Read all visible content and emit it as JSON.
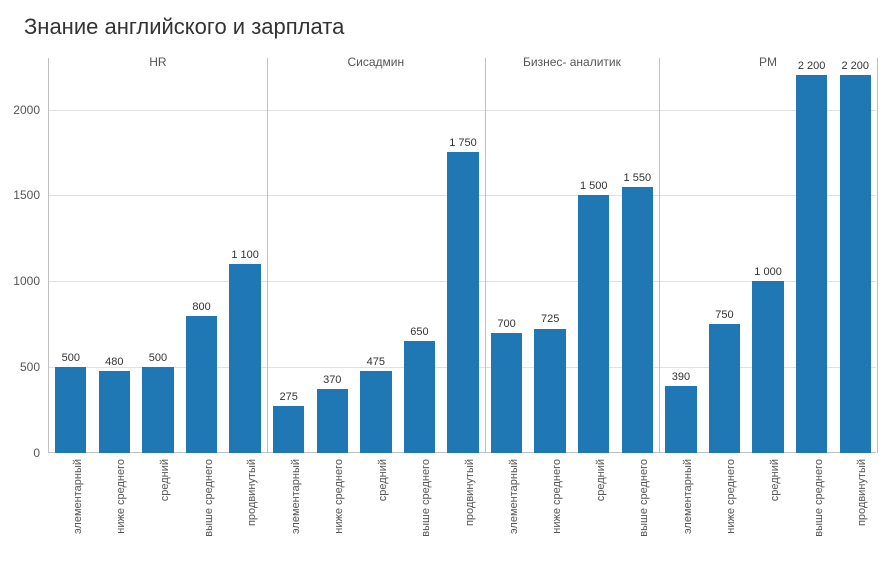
{
  "title": "Знание английского и зарплата",
  "chart": {
    "type": "bar",
    "bar_color": "#1f77b4",
    "background_color": "#ffffff",
    "grid_color": "#e0e0e0",
    "axis_color": "#c0c0c0",
    "text_color": "#555555",
    "title_color": "#333333",
    "title_fontsize": 22,
    "label_fontsize": 12,
    "bar_label_fontsize": 11,
    "xtick_fontsize": 11,
    "ylim": [
      0,
      2300
    ],
    "yticks": [
      0,
      500,
      1000,
      1500,
      2000
    ],
    "bar_width_ratio": 0.72,
    "panels": [
      {
        "label": "HR",
        "bars": [
          {
            "category": "элементарный",
            "value": 500,
            "value_label": "500"
          },
          {
            "category": "ниже среднего",
            "value": 480,
            "value_label": "480"
          },
          {
            "category": "средний",
            "value": 500,
            "value_label": "500"
          },
          {
            "category": "выше среднего",
            "value": 800,
            "value_label": "800"
          },
          {
            "category": "продвинутый",
            "value": 1100,
            "value_label": "1 100"
          }
        ]
      },
      {
        "label": "Сисадмин",
        "bars": [
          {
            "category": "элементарный",
            "value": 275,
            "value_label": "275"
          },
          {
            "category": "ниже среднего",
            "value": 370,
            "value_label": "370"
          },
          {
            "category": "средний",
            "value": 475,
            "value_label": "475"
          },
          {
            "category": "выше среднего",
            "value": 650,
            "value_label": "650"
          },
          {
            "category": "продвинутый",
            "value": 1750,
            "value_label": "1 750"
          }
        ]
      },
      {
        "label": "Бизнес- аналитик",
        "bars": [
          {
            "category": "элементарный",
            "value": 700,
            "value_label": "700"
          },
          {
            "category": "ниже среднего",
            "value": 725,
            "value_label": "725"
          },
          {
            "category": "средний",
            "value": 1500,
            "value_label": "1 500"
          },
          {
            "category": "выше среднего",
            "value": 1550,
            "value_label": "1 550"
          }
        ]
      },
      {
        "label": "PM",
        "bars": [
          {
            "category": "элементарный",
            "value": 390,
            "value_label": "390"
          },
          {
            "category": "ниже среднего",
            "value": 750,
            "value_label": "750"
          },
          {
            "category": "средний",
            "value": 1000,
            "value_label": "1 000"
          },
          {
            "category": "выше среднего",
            "value": 2200,
            "value_label": "2 200"
          },
          {
            "category": "продвинутый",
            "value": 2200,
            "value_label": "2 200"
          }
        ]
      }
    ]
  }
}
